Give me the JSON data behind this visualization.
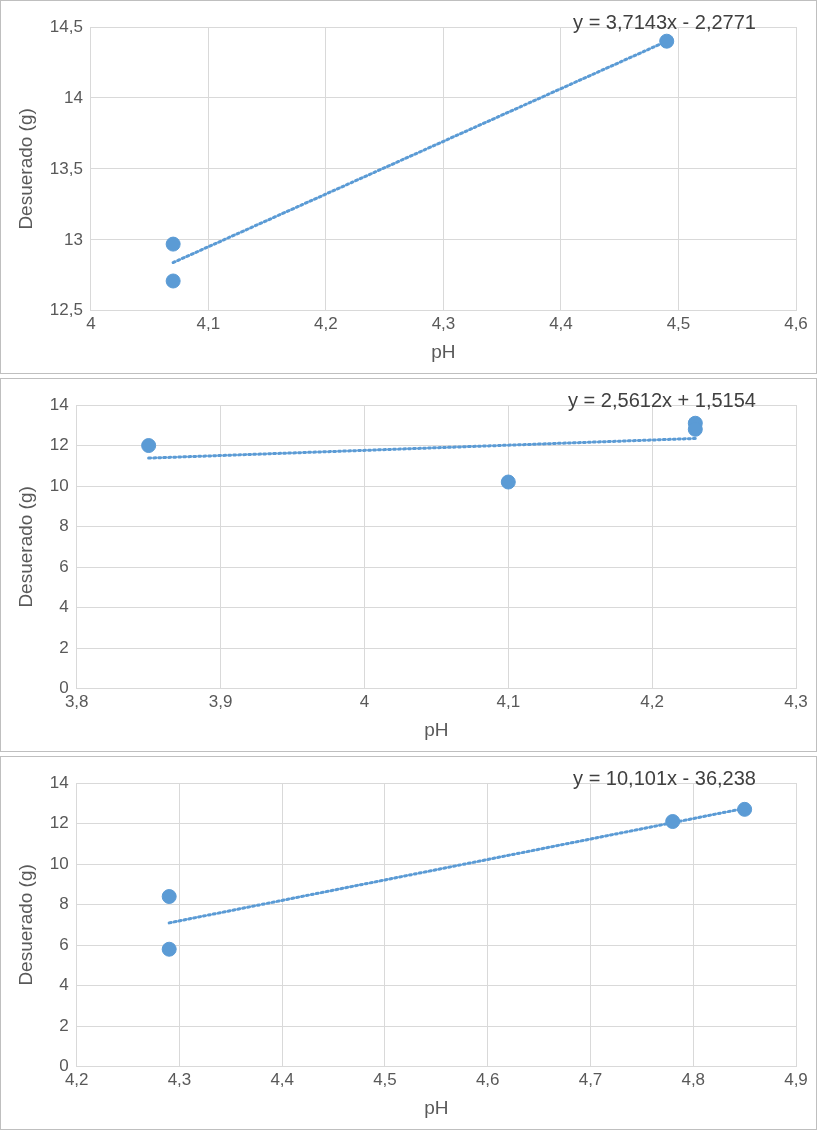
{
  "chart_data": [
    {
      "type": "scatter",
      "xlabel": "pH",
      "ylabel": "Desuerado (g)",
      "annotations": [
        "y = 3,7143x - 2,2771"
      ],
      "grid": true,
      "legend": false,
      "xlim": [
        4,
        4.6
      ],
      "xticks": [
        4,
        {
          "value": 4.1,
          "label": "4,1"
        },
        {
          "value": 4.2,
          "label": "4,2"
        },
        {
          "value": 4.3,
          "label": "4,3"
        },
        {
          "value": 4.4,
          "label": "4,4"
        },
        {
          "value": 4.5,
          "label": "4,5"
        },
        {
          "value": 4.6,
          "label": "4,6"
        }
      ],
      "ylim": [
        12.5,
        14.5
      ],
      "yticks": [
        {
          "value": 12.5,
          "label": "12,5"
        },
        13,
        {
          "value": 13.5,
          "label": "13,5"
        },
        14,
        {
          "value": 14.5,
          "label": "14,5"
        }
      ],
      "series": [
        {
          "marker": "circle",
          "color": "#5b9bd5",
          "x": [
            4.07,
            4.07,
            4.49
          ],
          "values": [
            12.97,
            12.71,
            14.4
          ]
        },
        {
          "type": "line",
          "marker": "none",
          "line_style": "dotted",
          "color": "#5b9bd5",
          "x": [
            4.07,
            4.49
          ],
          "values": [
            12.84,
            14.4
          ]
        }
      ]
    },
    {
      "type": "scatter",
      "xlabel": "pH",
      "ylabel": "Desuerado (g)",
      "annotations": [
        "y = 2,5612x + 1,5154"
      ],
      "grid": true,
      "legend": false,
      "xlim": [
        3.8,
        4.3
      ],
      "xticks": [
        {
          "value": 3.8,
          "label": "3,8"
        },
        {
          "value": 3.9,
          "label": "3,9"
        },
        4,
        {
          "value": 4.1,
          "label": "4,1"
        },
        {
          "value": 4.2,
          "label": "4,2"
        },
        {
          "value": 4.3,
          "label": "4,3"
        }
      ],
      "ylim": [
        0,
        14
      ],
      "yticks": [
        0,
        2,
        4,
        6,
        8,
        10,
        12,
        14
      ],
      "series": [
        {
          "marker": "circle",
          "color": "#5b9bd5",
          "x": [
            3.85,
            4.1,
            4.23,
            4.23
          ],
          "values": [
            12.0,
            10.2,
            13.1,
            12.8
          ]
        },
        {
          "type": "line",
          "marker": "none",
          "line_style": "dotted",
          "color": "#5b9bd5",
          "x": [
            3.85,
            4.23
          ],
          "values": [
            11.38,
            12.35
          ]
        }
      ]
    },
    {
      "type": "scatter",
      "xlabel": "pH",
      "ylabel": "Desuerado (g)",
      "annotations": [
        "y = 10,101x - 36,238"
      ],
      "grid": true,
      "legend": false,
      "xlim": [
        4.2,
        4.9
      ],
      "xticks": [
        {
          "value": 4.2,
          "label": "4,2"
        },
        {
          "value": 4.3,
          "label": "4,3"
        },
        {
          "value": 4.4,
          "label": "4,4"
        },
        {
          "value": 4.5,
          "label": "4,5"
        },
        {
          "value": 4.6,
          "label": "4,6"
        },
        {
          "value": 4.7,
          "label": "4,7"
        },
        {
          "value": 4.8,
          "label": "4,8"
        },
        {
          "value": 4.9,
          "label": "4,9"
        }
      ],
      "ylim": [
        0,
        14
      ],
      "yticks": [
        0,
        2,
        4,
        6,
        8,
        10,
        12,
        14
      ],
      "series": [
        {
          "marker": "circle",
          "color": "#5b9bd5",
          "x": [
            4.29,
            4.29,
            4.78,
            4.85
          ],
          "values": [
            8.4,
            5.8,
            12.1,
            12.7
          ]
        },
        {
          "type": "line",
          "marker": "none",
          "line_style": "dotted",
          "color": "#5b9bd5",
          "x": [
            4.29,
            4.85
          ],
          "values": [
            7.1,
            12.75
          ]
        }
      ]
    }
  ]
}
